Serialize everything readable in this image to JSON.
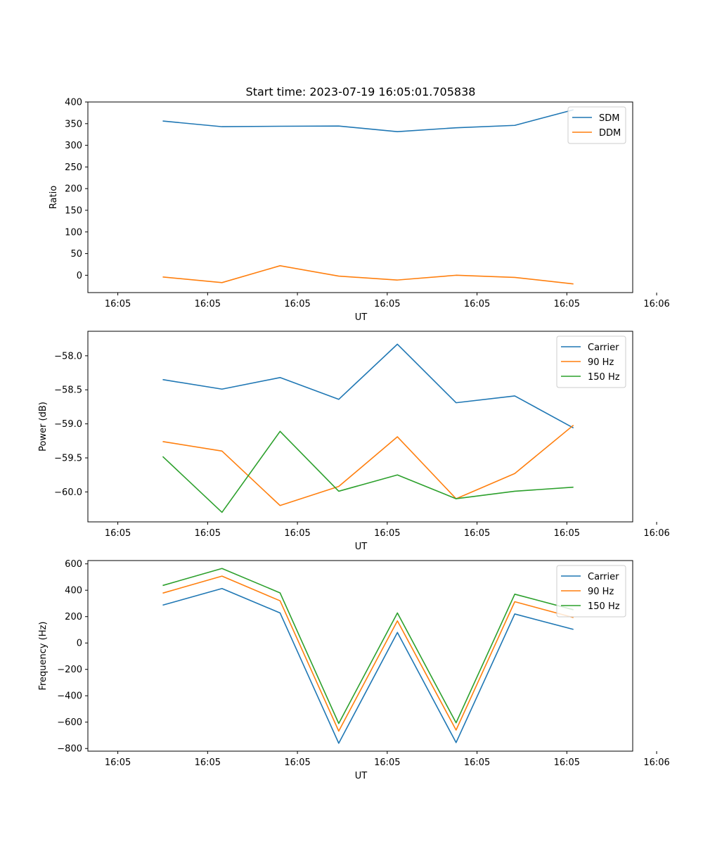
{
  "figure_title": "Start time: 2023-07-19 16:05:01.705838",
  "chart_data": [
    {
      "type": "line",
      "title": "Start time: 2023-07-19 16:05:01.705838",
      "xlabel": "UT",
      "ylabel": "Ratio",
      "xlim": [
        -0.5,
        8.6
      ],
      "x_ticks": [
        0,
        1.5,
        3,
        4.5,
        6,
        7.5,
        9
      ],
      "x_tick_labels": [
        "16:05",
        "16:05",
        "16:05",
        "16:05",
        "16:05",
        "16:05",
        "16:06"
      ],
      "ylim": [
        -40,
        400
      ],
      "y_ticks": [
        0,
        50,
        100,
        150,
        200,
        250,
        300,
        350,
        400
      ],
      "x": [
        0.75,
        1.74,
        2.71,
        3.69,
        4.67,
        5.65,
        6.63,
        7.61
      ],
      "series": [
        {
          "name": "SDM",
          "color": "#1f77b4",
          "values": [
            356,
            343,
            344,
            344.5,
            331.5,
            340.5,
            346,
            382
          ]
        },
        {
          "name": "DDM",
          "color": "#ff7f0e",
          "values": [
            -4,
            -17,
            22,
            -2,
            -11,
            0,
            -5,
            -20
          ]
        }
      ],
      "legend": "top-right"
    },
    {
      "type": "line",
      "title": "",
      "xlabel": "UT",
      "ylabel": "Power (dB)",
      "xlim": [
        -0.5,
        8.6
      ],
      "x_ticks": [
        0,
        1.5,
        3,
        4.5,
        6,
        7.5,
        9
      ],
      "x_tick_labels": [
        "16:05",
        "16:05",
        "16:05",
        "16:05",
        "16:05",
        "16:05",
        "16:06"
      ],
      "ylim": [
        -60.44,
        -57.64
      ],
      "y_ticks": [
        -60.0,
        -59.5,
        -59.0,
        -58.5,
        -58.0
      ],
      "y_tick_labels": [
        "−60.0",
        "−59.5",
        "−59.0",
        "−58.5",
        "−58.0"
      ],
      "x": [
        0.75,
        1.74,
        2.71,
        3.69,
        4.67,
        5.65,
        6.63,
        7.61
      ],
      "series": [
        {
          "name": "Carrier",
          "color": "#1f77b4",
          "values": [
            -58.35,
            -58.49,
            -58.32,
            -58.64,
            -57.83,
            -58.69,
            -58.59,
            -59.06
          ]
        },
        {
          "name": "90 Hz",
          "color": "#ff7f0e",
          "values": [
            -59.26,
            -59.4,
            -60.2,
            -59.92,
            -59.19,
            -60.1,
            -59.73,
            -59.02
          ]
        },
        {
          "name": "150 Hz",
          "color": "#2ca02c",
          "values": [
            -59.48,
            -60.3,
            -59.11,
            -59.99,
            -59.75,
            -60.1,
            -59.99,
            -59.93
          ]
        }
      ],
      "legend": "top-right"
    },
    {
      "type": "line",
      "title": "",
      "xlabel": "UT",
      "ylabel": "Frequency (Hz)",
      "xlim": [
        -0.5,
        8.6
      ],
      "x_ticks": [
        0,
        1.5,
        3,
        4.5,
        6,
        7.5,
        9
      ],
      "x_tick_labels": [
        "16:05",
        "16:05",
        "16:05",
        "16:05",
        "16:05",
        "16:05",
        "16:06"
      ],
      "ylim": [
        -820,
        625
      ],
      "y_ticks": [
        -800,
        -600,
        -400,
        -200,
        0,
        200,
        400,
        600
      ],
      "y_tick_labels": [
        "−800",
        "−600",
        "−400",
        "−200",
        "0",
        "200",
        "400",
        "600"
      ],
      "x": [
        0.75,
        1.74,
        2.71,
        3.69,
        4.67,
        5.65,
        6.63,
        7.61
      ],
      "series": [
        {
          "name": "Carrier",
          "color": "#1f77b4",
          "values": [
            287,
            413,
            228,
            -760,
            80,
            -755,
            220,
            103
          ]
        },
        {
          "name": "90 Hz",
          "color": "#ff7f0e",
          "values": [
            378,
            507,
            320,
            -668,
            168,
            -660,
            313,
            193
          ]
        },
        {
          "name": "150 Hz",
          "color": "#2ca02c",
          "values": [
            436,
            565,
            380,
            -610,
            228,
            -605,
            370,
            252
          ]
        }
      ],
      "legend": "top-right"
    }
  ]
}
